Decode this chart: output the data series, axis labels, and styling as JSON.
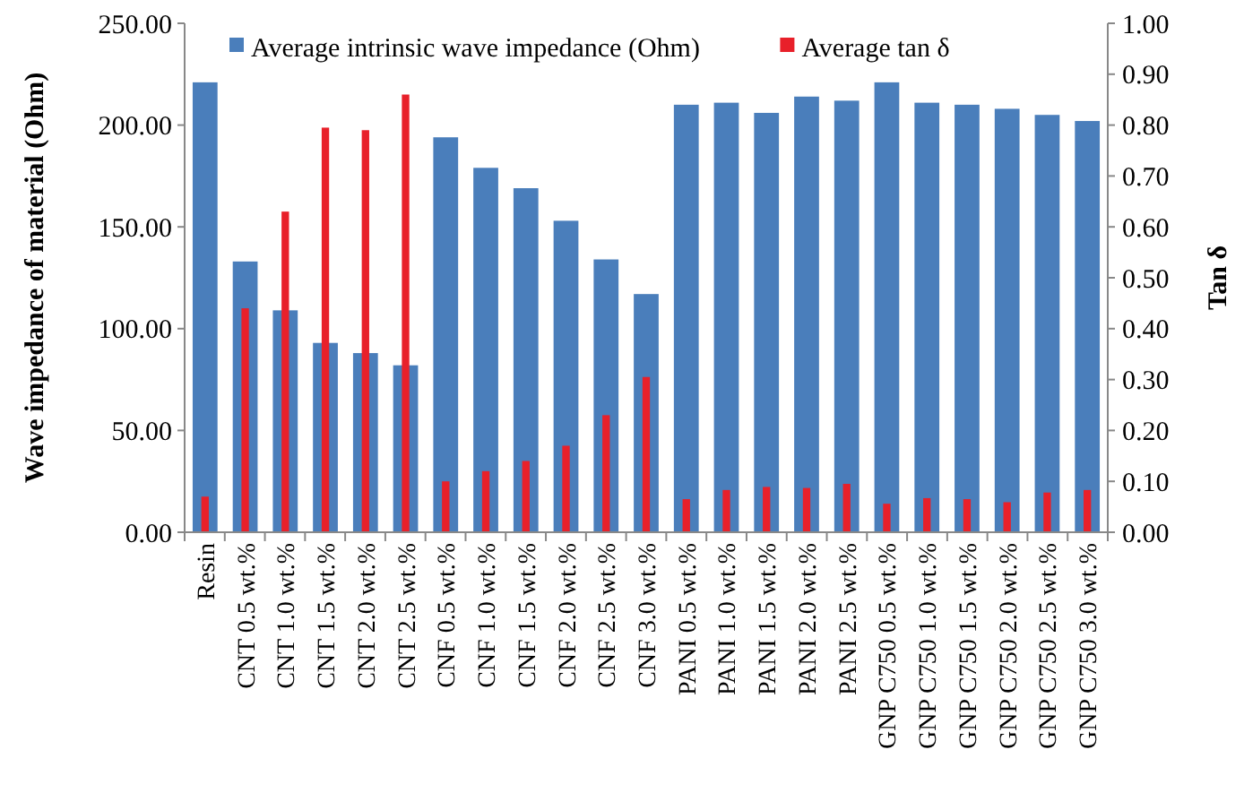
{
  "chart_data": {
    "type": "bar",
    "ylabel": "Wave impedance of material (Ohm)",
    "y2label": "Tan δ",
    "categories": [
      "Resin",
      "CNT 0.5 wt.%",
      "CNT 1.0 wt.%",
      "CNT 1.5 wt.%",
      "CNT 2.0 wt.%",
      "CNT 2.5 wt.%",
      "CNF 0.5 wt.%",
      "CNF 1.0 wt.%",
      "CNF 1.5 wt.%",
      "CNF 2.0 wt.%",
      "CNF 2.5 wt.%",
      "CNF 3.0 wt.%",
      "PANI 0.5 wt.%",
      "PANI 1.0 wt.%",
      "PANI 1.5 wt.%",
      "PANI 2.0 wt.%",
      "PANI 2.5 wt.%",
      "GNP C750 0.5 wt.%",
      "GNP C750 1.0 wt.%",
      "GNP C750 1.5 wt.%",
      "GNP C750 2.0 wt.%",
      "GNP C750 2.5 wt.%",
      "GNP C750 3.0 wt.%"
    ],
    "series": [
      {
        "name": "Average intrinsic wave impedance (Ohm)",
        "color": "#4a7ebb",
        "values": [
          221,
          133,
          109,
          93,
          88,
          82,
          194,
          179,
          169,
          153,
          134,
          117,
          210,
          211,
          206,
          214,
          212,
          221,
          211,
          210,
          208,
          205,
          202
        ]
      },
      {
        "name": "Average tan δ",
        "color": "#e8202a",
        "axis": "y2",
        "values": [
          0.07,
          0.44,
          0.63,
          0.795,
          0.79,
          0.86,
          0.1,
          0.12,
          0.14,
          0.17,
          0.23,
          0.305,
          0.065,
          0.083,
          0.089,
          0.087,
          0.095,
          0.056,
          0.067,
          0.065,
          0.059,
          0.078,
          0.083
        ]
      }
    ],
    "ylim": [
      0,
      250
    ],
    "yticks": [
      {
        "value": 0,
        "label": "0.00"
      },
      {
        "value": 50,
        "label": "50.00"
      },
      {
        "value": 100,
        "label": "100.00"
      },
      {
        "value": 150,
        "label": "150.00"
      },
      {
        "value": 200,
        "label": "200.00"
      },
      {
        "value": 250,
        "label": "250.00"
      }
    ],
    "y2lim": [
      0,
      1
    ],
    "y2ticks": [
      {
        "value": 0,
        "label": "0.00"
      },
      {
        "value": 0.1,
        "label": "0.10"
      },
      {
        "value": 0.2,
        "label": "0.20"
      },
      {
        "value": 0.3,
        "label": "0.30"
      },
      {
        "value": 0.4,
        "label": "0.40"
      },
      {
        "value": 0.5,
        "label": "0.50"
      },
      {
        "value": 0.6,
        "label": "0.60"
      },
      {
        "value": 0.7,
        "label": "0.70"
      },
      {
        "value": 0.8,
        "label": "0.80"
      },
      {
        "value": 0.9,
        "label": "0.90"
      },
      {
        "value": 1,
        "label": "1.00"
      }
    ],
    "legend": "top"
  }
}
